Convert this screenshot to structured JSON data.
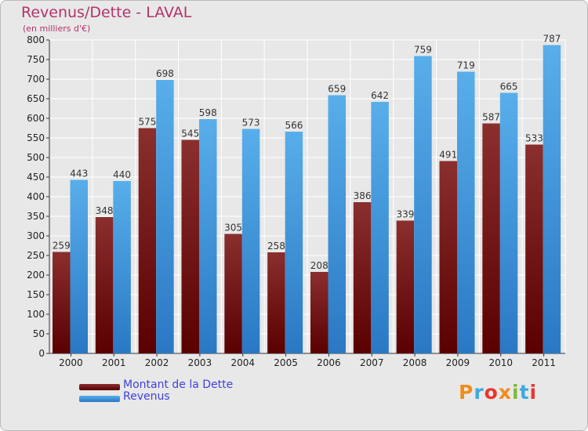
{
  "title": "Revenus/Dette - LAVAL",
  "subtitle": "(en milliers d'€)",
  "logo": "Proxiti",
  "logo_colors": [
    "#f18c1c",
    "#3fa8e0",
    "#e8372f",
    "#f18c1c",
    "#7cba3a",
    "#3fa8e0",
    "#e8372f"
  ],
  "colors": {
    "dette": "#7a1c1c",
    "revenus": "#3a9be0",
    "plot_bg": "#e8e8e8",
    "grid": "#ffffff",
    "title": "#b2336b",
    "legend_text": "#3f3fe0"
  },
  "chart_data": {
    "type": "bar",
    "categories": [
      "2000",
      "2001",
      "2002",
      "2003",
      "2004",
      "2005",
      "2006",
      "2007",
      "2008",
      "2009",
      "2010",
      "2011"
    ],
    "series": [
      {
        "name": "Montant de la Dette",
        "values": [
          259,
          348,
          575,
          545,
          305,
          258,
          208,
          386,
          339,
          491,
          587,
          533
        ]
      },
      {
        "name": "Revenus",
        "values": [
          443,
          440,
          698,
          598,
          573,
          566,
          659,
          642,
          759,
          719,
          665,
          787
        ]
      }
    ],
    "title": "Revenus/Dette - LAVAL",
    "ylabel": "(en milliers d'€)",
    "ylim": [
      0,
      800
    ],
    "yticks": [
      0,
      50,
      100,
      150,
      200,
      250,
      300,
      350,
      400,
      450,
      500,
      550,
      600,
      650,
      700,
      750,
      800
    ],
    "grid": true,
    "legend_position": "bottom-left"
  }
}
